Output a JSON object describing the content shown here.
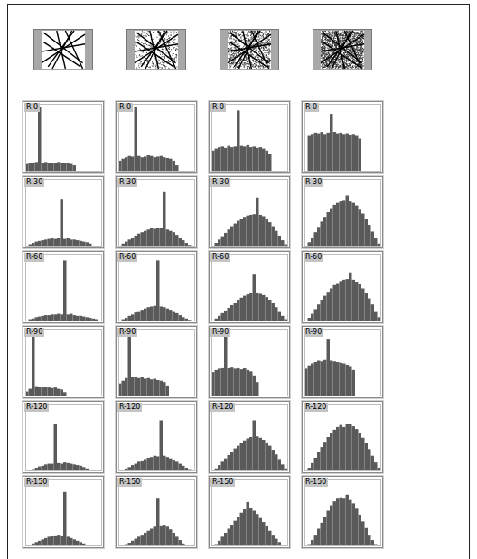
{
  "chart_data": [
    {
      "type": "histogram",
      "title": "R-0",
      "bins": [
        0,
        1,
        2,
        3,
        4,
        5,
        6,
        7,
        8,
        9,
        10,
        11,
        12,
        13,
        14,
        15,
        16,
        17,
        18,
        19,
        20,
        21,
        22,
        23,
        24
      ],
      "values": [
        10,
        11,
        12,
        13,
        95,
        12,
        13,
        12,
        11,
        12,
        13,
        12,
        11,
        12,
        10,
        8,
        0,
        0,
        0,
        0,
        0,
        0,
        0,
        0
      ],
      "xlim": [
        0,
        24
      ],
      "ylim": [
        0,
        100
      ],
      "tick_labels": false,
      "color": "#5a5a5a"
    },
    {
      "type": "histogram",
      "title": "R-30",
      "bins": [
        0,
        1,
        2,
        3,
        4,
        5,
        6,
        7,
        8,
        9,
        10,
        11,
        12,
        13,
        14,
        15,
        16,
        17,
        18,
        19,
        20,
        21,
        22,
        23,
        24
      ],
      "values": [
        0,
        2,
        4,
        6,
        7,
        8,
        9,
        10,
        11,
        10,
        11,
        70,
        10,
        11,
        9,
        9,
        8,
        7,
        6,
        5,
        3,
        0,
        0,
        0
      ],
      "xlim": [
        0,
        24
      ],
      "ylim": [
        0,
        100
      ],
      "tick_labels": false,
      "color": "#5a5a5a"
    },
    {
      "type": "histogram",
      "title": "R-60",
      "bins": [
        0,
        1,
        2,
        3,
        4,
        5,
        6,
        7,
        8,
        9,
        10,
        11,
        12,
        13,
        14,
        15,
        16,
        17,
        18,
        19,
        20,
        21,
        22,
        23,
        24
      ],
      "values": [
        0,
        2,
        3,
        5,
        6,
        7,
        8,
        8,
        9,
        9,
        10,
        9,
        90,
        9,
        10,
        8,
        7,
        7,
        6,
        5,
        4,
        3,
        2,
        0
      ],
      "xlim": [
        0,
        24
      ],
      "ylim": [
        0,
        100
      ],
      "tick_labels": false,
      "color": "#5a5a5a"
    },
    {
      "type": "histogram",
      "title": "R-90",
      "bins": [
        0,
        1,
        2,
        3,
        4,
        5,
        6,
        7,
        8,
        9,
        10,
        11,
        12,
        13,
        14,
        15,
        16,
        17,
        18,
        19,
        20,
        21,
        22,
        23,
        24
      ],
      "values": [
        6,
        10,
        95,
        14,
        13,
        12,
        13,
        12,
        11,
        12,
        10,
        9,
        5,
        0,
        0,
        0,
        0,
        0,
        0,
        0,
        0,
        0,
        0,
        0
      ],
      "xlim": [
        0,
        24
      ],
      "ylim": [
        0,
        100
      ],
      "tick_labels": false,
      "color": "#5a5a5a"
    },
    {
      "type": "histogram",
      "title": "R-120",
      "bins": [
        0,
        1,
        2,
        3,
        4,
        5,
        6,
        7,
        8,
        9,
        10,
        11,
        12,
        13,
        14,
        15,
        16,
        17,
        18,
        19,
        20,
        21,
        22,
        23,
        24
      ],
      "values": [
        0,
        0,
        2,
        4,
        6,
        7,
        9,
        10,
        10,
        70,
        11,
        10,
        12,
        11,
        10,
        9,
        8,
        7,
        5,
        3,
        1,
        0,
        0,
        0
      ],
      "xlim": [
        0,
        24
      ],
      "ylim": [
        0,
        100
      ],
      "tick_labels": false,
      "color": "#5a5a5a"
    },
    {
      "type": "histogram",
      "title": "R-150",
      "bins": [
        0,
        1,
        2,
        3,
        4,
        5,
        6,
        7,
        8,
        9,
        10,
        11,
        12,
        13,
        14,
        15,
        16,
        17,
        18,
        19,
        20,
        21,
        22,
        23,
        24
      ],
      "values": [
        0,
        1,
        3,
        5,
        7,
        9,
        11,
        13,
        14,
        15,
        16,
        14,
        80,
        13,
        11,
        9,
        7,
        5,
        3,
        1,
        0,
        0,
        0,
        0
      ],
      "xlim": [
        0,
        24
      ],
      "ylim": [
        0,
        100
      ],
      "tick_labels": false,
      "color": "#5a5a5a"
    },
    {
      "type": "histogram",
      "title": "R-0",
      "bins": [
        0,
        1,
        2,
        3,
        4,
        5,
        6,
        7,
        8,
        9,
        10,
        11,
        12,
        13,
        14,
        15,
        16,
        17,
        18,
        19,
        20,
        21,
        22,
        23,
        24
      ],
      "values": [
        15,
        18,
        20,
        22,
        21,
        95,
        22,
        20,
        21,
        23,
        22,
        20,
        21,
        22,
        20,
        19,
        18,
        15,
        8,
        0,
        0,
        0,
        0,
        0
      ],
      "xlim": [
        0,
        24
      ],
      "ylim": [
        0,
        100
      ],
      "tick_labels": false,
      "color": "#5a5a5a"
    },
    {
      "type": "histogram",
      "title": "R-30",
      "bins": [
        0,
        1,
        2,
        3,
        4,
        5,
        6,
        7,
        8,
        9,
        10,
        11,
        12,
        13,
        14,
        15,
        16,
        17,
        18,
        19,
        20,
        21,
        22,
        23,
        24
      ],
      "values": [
        0,
        3,
        6,
        9,
        12,
        15,
        18,
        20,
        22,
        24,
        26,
        25,
        27,
        26,
        80,
        24,
        22,
        20,
        16,
        12,
        8,
        4,
        1,
        0
      ],
      "xlim": [
        0,
        24
      ],
      "ylim": [
        0,
        100
      ],
      "tick_labels": false,
      "color": "#5a5a5a"
    },
    {
      "type": "histogram",
      "title": "R-60",
      "bins": [
        0,
        1,
        2,
        3,
        4,
        5,
        6,
        7,
        8,
        9,
        10,
        11,
        12,
        13,
        14,
        15,
        16,
        17,
        18,
        19,
        20,
        21,
        22,
        23,
        24
      ],
      "values": [
        0,
        2,
        4,
        7,
        9,
        12,
        14,
        16,
        18,
        20,
        21,
        22,
        90,
        21,
        20,
        18,
        16,
        14,
        11,
        8,
        5,
        3,
        1,
        0
      ],
      "xlim": [
        0,
        24
      ],
      "ylim": [
        0,
        100
      ],
      "tick_labels": false,
      "color": "#5a5a5a"
    },
    {
      "type": "histogram",
      "title": "R-90",
      "bins": [
        0,
        1,
        2,
        3,
        4,
        5,
        6,
        7,
        8,
        9,
        10,
        11,
        12,
        13,
        14,
        15,
        16,
        17,
        18,
        19,
        20,
        21,
        22,
        23,
        24
      ],
      "values": [
        18,
        22,
        26,
        90,
        27,
        28,
        26,
        27,
        25,
        26,
        24,
        25,
        23,
        22,
        20,
        15,
        0,
        0,
        0,
        0,
        0,
        0,
        0,
        0
      ],
      "xlim": [
        0,
        24
      ],
      "ylim": [
        0,
        100
      ],
      "tick_labels": false,
      "color": "#5a5a5a"
    },
    {
      "type": "histogram",
      "title": "R-120",
      "bins": [
        0,
        1,
        2,
        3,
        4,
        5,
        6,
        7,
        8,
        9,
        10,
        11,
        12,
        13,
        14,
        15,
        16,
        17,
        18,
        19,
        20,
        21,
        22,
        23,
        24
      ],
      "values": [
        0,
        1,
        3,
        5,
        8,
        10,
        13,
        15,
        17,
        19,
        20,
        22,
        21,
        75,
        22,
        20,
        18,
        16,
        13,
        10,
        7,
        4,
        2,
        0
      ],
      "xlim": [
        0,
        24
      ],
      "ylim": [
        0,
        100
      ],
      "tick_labels": false,
      "color": "#5a5a5a"
    },
    {
      "type": "histogram",
      "title": "R-150",
      "bins": [
        0,
        1,
        2,
        3,
        4,
        5,
        6,
        7,
        8,
        9,
        10,
        11,
        12,
        13,
        14,
        15,
        16,
        17,
        18,
        19,
        20,
        21,
        22,
        23,
        24
      ],
      "values": [
        0,
        0,
        2,
        4,
        7,
        10,
        13,
        16,
        19,
        22,
        25,
        28,
        70,
        30,
        31,
        28,
        24,
        19,
        13,
        8,
        3,
        0,
        0,
        0
      ],
      "xlim": [
        0,
        24
      ],
      "ylim": [
        0,
        100
      ],
      "tick_labels": false,
      "color": "#5a5a5a"
    },
    {
      "type": "histogram",
      "title": "R-0",
      "bins": [
        0,
        1,
        2,
        3,
        4,
        5,
        6,
        7,
        8,
        9,
        10,
        11,
        12,
        13,
        14,
        15,
        16,
        17,
        18,
        19,
        20,
        21,
        22,
        23,
        24
      ],
      "values": [
        30,
        33,
        35,
        36,
        34,
        37,
        35,
        36,
        90,
        37,
        36,
        38,
        35,
        36,
        34,
        35,
        33,
        30,
        25,
        0,
        0,
        0,
        0,
        0
      ],
      "xlim": [
        0,
        24
      ],
      "ylim": [
        0,
        100
      ],
      "tick_labels": false,
      "color": "#5a5a5a"
    },
    {
      "type": "histogram",
      "title": "R-30",
      "bins": [
        0,
        1,
        2,
        3,
        4,
        5,
        6,
        7,
        8,
        9,
        10,
        11,
        12,
        13,
        14,
        15,
        16,
        17,
        18,
        19,
        20,
        21,
        22,
        23,
        24
      ],
      "values": [
        0,
        4,
        9,
        14,
        19,
        24,
        29,
        33,
        37,
        40,
        43,
        45,
        46,
        47,
        72,
        46,
        44,
        40,
        35,
        29,
        22,
        15,
        8,
        2
      ],
      "xlim": [
        0,
        24
      ],
      "ylim": [
        0,
        100
      ],
      "tick_labels": false,
      "color": "#5a5a5a"
    },
    {
      "type": "histogram",
      "title": "R-60",
      "bins": [
        0,
        1,
        2,
        3,
        4,
        5,
        6,
        7,
        8,
        9,
        10,
        11,
        12,
        13,
        14,
        15,
        16,
        17,
        18,
        19,
        20,
        21,
        22,
        23,
        24
      ],
      "values": [
        0,
        3,
        7,
        11,
        15,
        19,
        23,
        27,
        31,
        34,
        37,
        39,
        41,
        70,
        42,
        40,
        38,
        35,
        31,
        26,
        20,
        14,
        7,
        2
      ],
      "xlim": [
        0,
        24
      ],
      "ylim": [
        0,
        100
      ],
      "tick_labels": false,
      "color": "#5a5a5a"
    },
    {
      "type": "histogram",
      "title": "R-90",
      "bins": [
        0,
        1,
        2,
        3,
        4,
        5,
        6,
        7,
        8,
        9,
        10,
        11,
        12,
        13,
        14,
        15,
        16,
        17,
        18,
        19,
        20,
        21,
        22,
        23,
        24
      ],
      "values": [
        35,
        38,
        40,
        42,
        95,
        41,
        43,
        40,
        42,
        39,
        41,
        38,
        36,
        30,
        20,
        0,
        0,
        0,
        0,
        0,
        0,
        0,
        0,
        0
      ],
      "xlim": [
        0,
        24
      ],
      "ylim": [
        0,
        100
      ],
      "tick_labels": false,
      "color": "#5a5a5a"
    },
    {
      "type": "histogram",
      "title": "R-120",
      "bins": [
        0,
        1,
        2,
        3,
        4,
        5,
        6,
        7,
        8,
        9,
        10,
        11,
        12,
        13,
        14,
        15,
        16,
        17,
        18,
        19,
        20,
        21,
        22,
        23,
        24
      ],
      "values": [
        0,
        3,
        8,
        13,
        18,
        23,
        28,
        33,
        37,
        41,
        45,
        48,
        50,
        75,
        51,
        49,
        46,
        42,
        37,
        31,
        24,
        17,
        9,
        3
      ],
      "xlim": [
        0,
        24
      ],
      "ylim": [
        0,
        100
      ],
      "tick_labels": false,
      "color": "#5a5a5a"
    },
    {
      "type": "histogram",
      "title": "R-150",
      "bins": [
        0,
        1,
        2,
        3,
        4,
        5,
        6,
        7,
        8,
        9,
        10,
        11,
        12,
        13,
        14,
        15,
        16,
        17,
        18,
        19,
        20,
        21,
        22,
        23,
        24
      ],
      "values": [
        0,
        2,
        7,
        13,
        19,
        25,
        31,
        37,
        43,
        49,
        54,
        65,
        56,
        52,
        47,
        41,
        35,
        29,
        22,
        16,
        10,
        5,
        1,
        0
      ],
      "xlim": [
        0,
        24
      ],
      "ylim": [
        0,
        100
      ],
      "tick_labels": false,
      "color": "#5a5a5a"
    },
    {
      "type": "histogram",
      "title": "R-0",
      "bins": [
        0,
        1,
        2,
        3,
        4,
        5,
        6,
        7,
        8,
        9,
        10,
        11,
        12,
        13,
        14,
        15,
        16,
        17,
        18,
        19,
        20,
        21,
        22,
        23,
        24
      ],
      "values": [
        0,
        52,
        55,
        57,
        56,
        58,
        55,
        57,
        85,
        58,
        56,
        57,
        55,
        56,
        54,
        55,
        52,
        48,
        0,
        0,
        0,
        0,
        0,
        0
      ],
      "xlim": [
        0,
        24
      ],
      "ylim": [
        0,
        100
      ],
      "tick_labels": false,
      "color": "#5a5a5a"
    },
    {
      "type": "histogram",
      "title": "R-30",
      "bins": [
        0,
        1,
        2,
        3,
        4,
        5,
        6,
        7,
        8,
        9,
        10,
        11,
        12,
        13,
        14,
        15,
        16,
        17,
        18,
        19,
        20,
        21,
        22,
        23,
        24
      ],
      "values": [
        0,
        5,
        12,
        20,
        28,
        36,
        43,
        50,
        56,
        61,
        64,
        66,
        67,
        75,
        66,
        64,
        60,
        55,
        48,
        40,
        31,
        21,
        11,
        3
      ],
      "xlim": [
        0,
        24
      ],
      "ylim": [
        0,
        100
      ],
      "tick_labels": false,
      "color": "#5a5a5a"
    },
    {
      "type": "histogram",
      "title": "R-60",
      "bins": [
        0,
        1,
        2,
        3,
        4,
        5,
        6,
        7,
        8,
        9,
        10,
        11,
        12,
        13,
        14,
        15,
        16,
        17,
        18,
        19,
        20,
        21,
        22,
        23,
        24
      ],
      "values": [
        0,
        4,
        10,
        17,
        24,
        31,
        37,
        43,
        48,
        53,
        56,
        59,
        61,
        62,
        72,
        61,
        58,
        54,
        48,
        41,
        33,
        24,
        14,
        5
      ],
      "xlim": [
        0,
        24
      ],
      "ylim": [
        0,
        100
      ],
      "tick_labels": false,
      "color": "#5a5a5a"
    },
    {
      "type": "histogram",
      "title": "R-90",
      "bins": [
        0,
        1,
        2,
        3,
        4,
        5,
        6,
        7,
        8,
        9,
        10,
        11,
        12,
        13,
        14,
        15,
        16,
        17,
        18,
        19,
        20,
        21,
        22,
        23,
        24
      ],
      "values": [
        40,
        45,
        48,
        50,
        52,
        51,
        53,
        85,
        52,
        51,
        50,
        49,
        48,
        46,
        44,
        38,
        0,
        0,
        0,
        0,
        0,
        0,
        0,
        0
      ],
      "xlim": [
        0,
        24
      ],
      "ylim": [
        0,
        100
      ],
      "tick_labels": false,
      "color": "#5a5a5a"
    },
    {
      "type": "histogram",
      "title": "R-120",
      "bins": [
        0,
        1,
        2,
        3,
        4,
        5,
        6,
        7,
        8,
        9,
        10,
        11,
        12,
        13,
        14,
        15,
        16,
        17,
        18,
        19,
        20,
        21,
        22,
        23,
        24
      ],
      "values": [
        0,
        4,
        11,
        19,
        27,
        35,
        43,
        50,
        56,
        61,
        65,
        68,
        65,
        70,
        69,
        66,
        62,
        56,
        49,
        41,
        32,
        22,
        12,
        4
      ],
      "xlim": [
        0,
        24
      ],
      "ylim": [
        0,
        100
      ],
      "tick_labels": false,
      "color": "#5a5a5a"
    },
    {
      "type": "histogram",
      "title": "R-150",
      "bins": [
        0,
        1,
        2,
        3,
        4,
        5,
        6,
        7,
        8,
        9,
        10,
        11,
        12,
        13,
        14,
        15,
        16,
        17,
        18,
        19,
        20,
        21,
        22,
        23,
        24
      ],
      "values": [
        0,
        2,
        8,
        16,
        25,
        34,
        43,
        52,
        60,
        66,
        70,
        72,
        70,
        76,
        68,
        63,
        55,
        46,
        36,
        26,
        16,
        8,
        2,
        0
      ],
      "xlim": [
        0,
        24
      ],
      "ylim": [
        0,
        100
      ],
      "tick_labels": false,
      "color": "#5a5a5a"
    }
  ]
}
